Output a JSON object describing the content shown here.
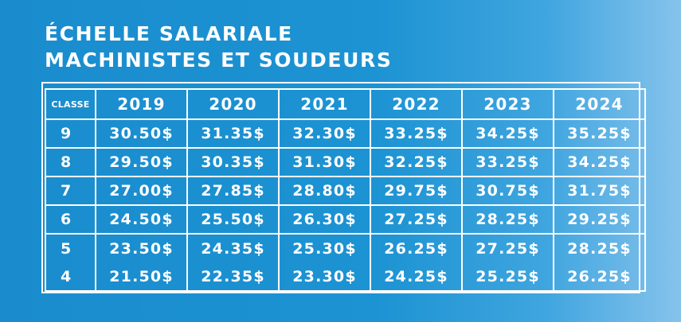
{
  "title": {
    "line1": "ÉCHELLE SALARIALE",
    "line2": "MACHINISTES ET SOUDEURS"
  },
  "table": {
    "headers": [
      "CLASSE",
      "2019",
      "2020",
      "2021",
      "2022",
      "2023",
      "2024"
    ],
    "rows": [
      [
        "9",
        "30.50$",
        "31.35$",
        "32.30$",
        "33.25$",
        "34.25$",
        "35.25$"
      ],
      [
        "8",
        "29.50$",
        "30.35$",
        "31.30$",
        "32.25$",
        "33.25$",
        "34.25$"
      ],
      [
        "7",
        "27.00$",
        "27.85$",
        "28.80$",
        "29.75$",
        "30.75$",
        "31.75$"
      ],
      [
        "6",
        "24.50$",
        "25.50$",
        "26.30$",
        "27.25$",
        "28.25$",
        "29.25$"
      ],
      [
        "5",
        "23.50$",
        "24.35$",
        "25.30$",
        "26.25$",
        "27.25$",
        "28.25$"
      ],
      [
        "4",
        "21.50$",
        "22.35$",
        "23.30$",
        "24.25$",
        "25.25$",
        "26.25$"
      ]
    ]
  },
  "colors": {
    "background": "#1c93d3",
    "text": "#ffffff"
  }
}
